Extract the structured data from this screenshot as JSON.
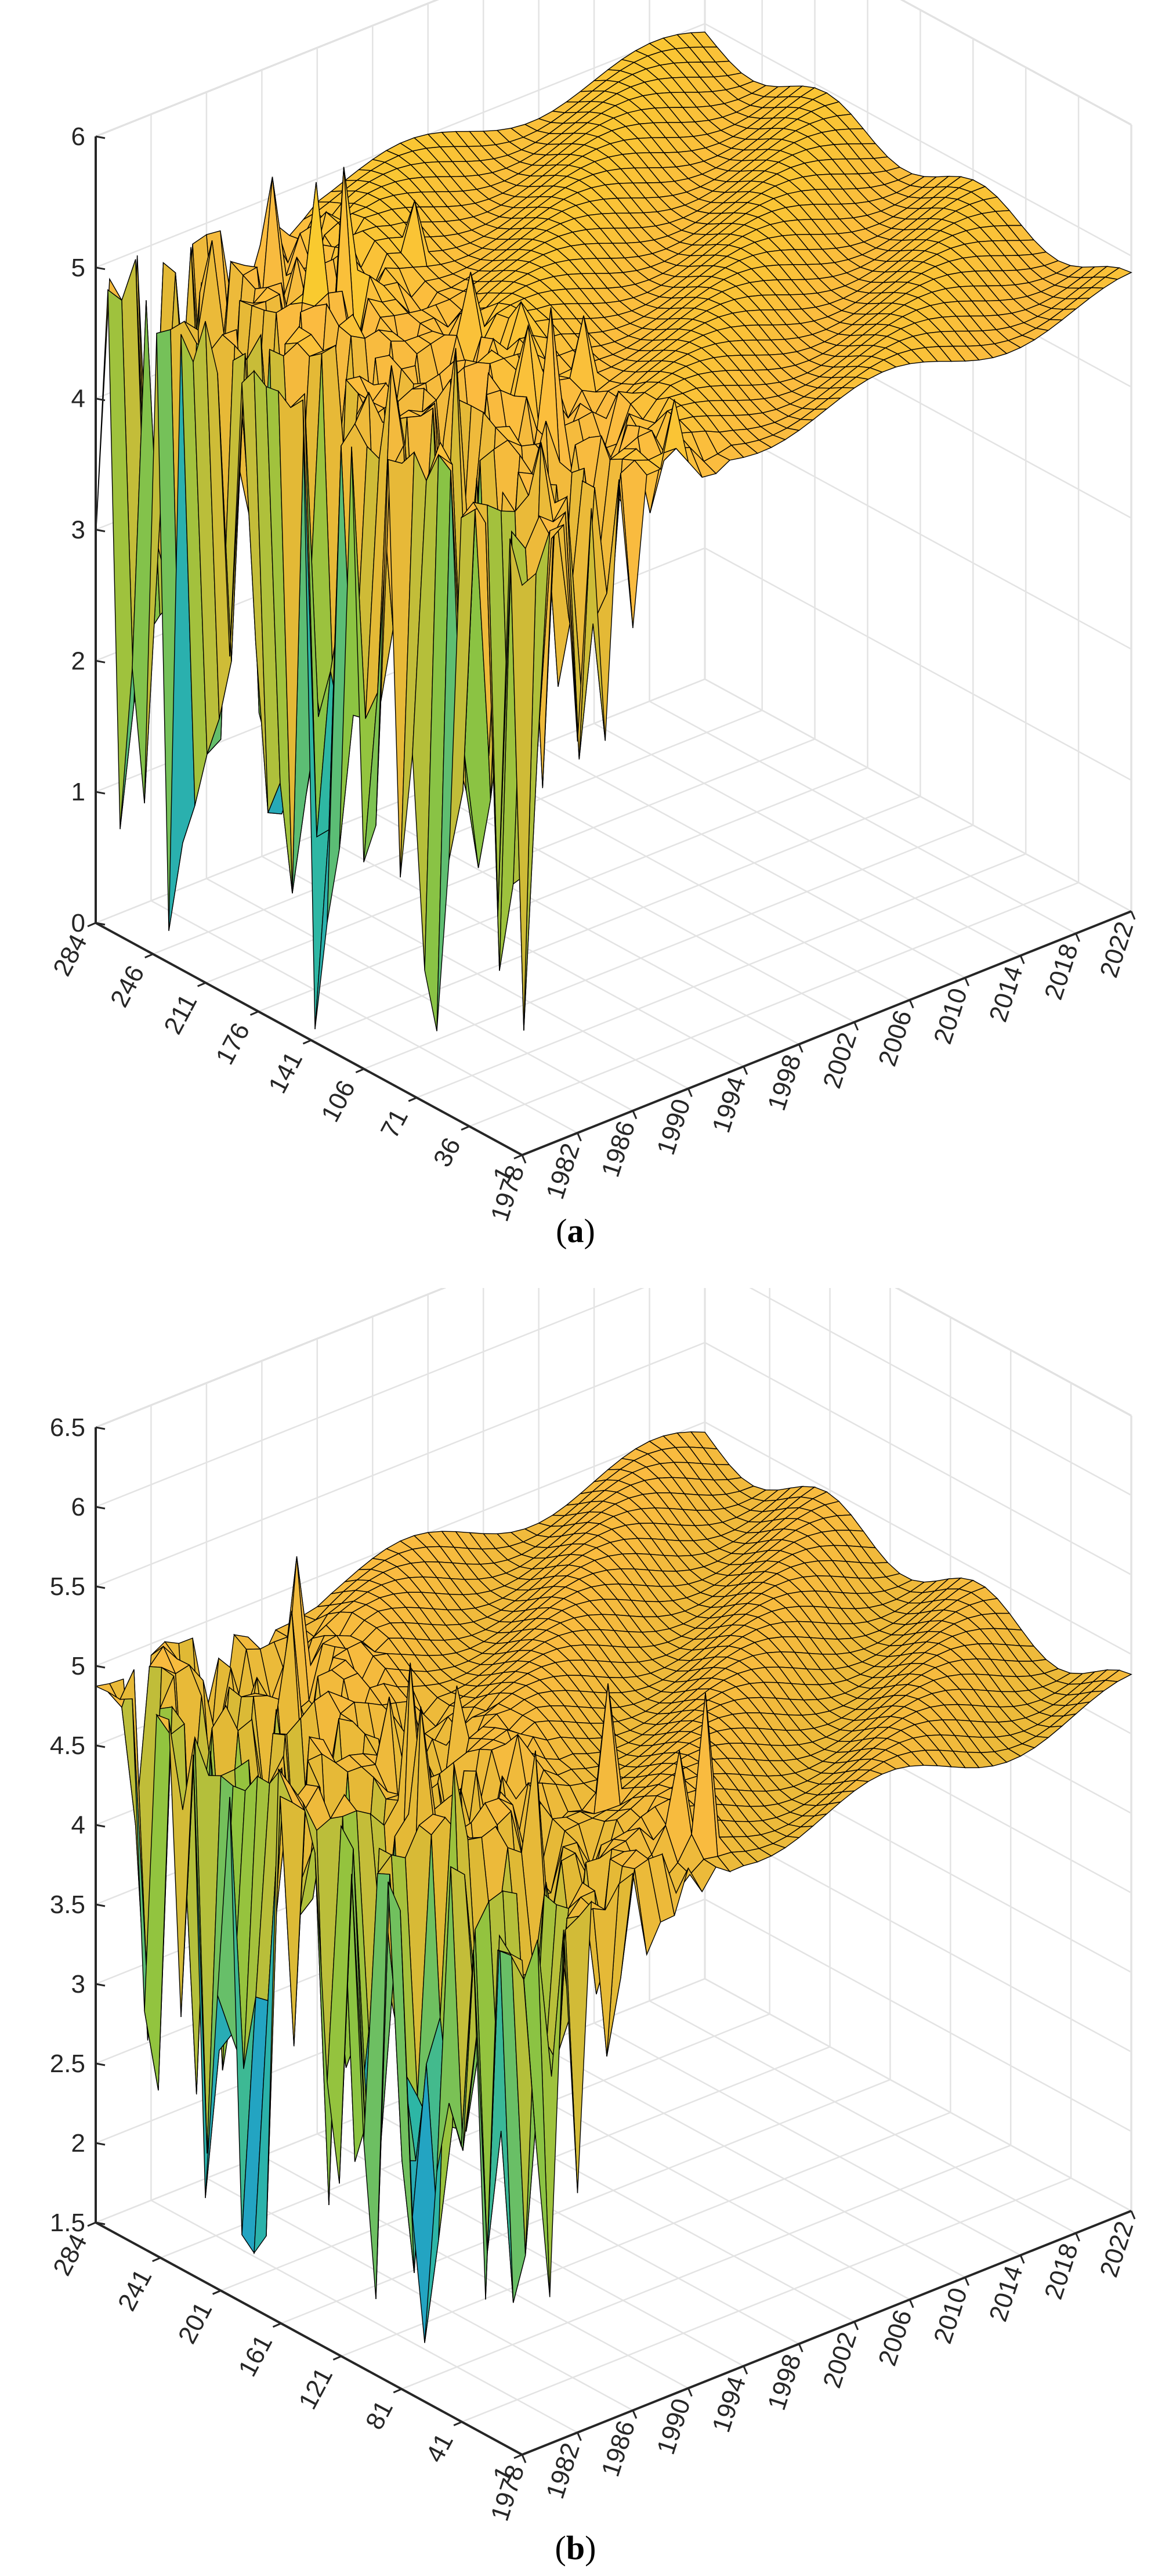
{
  "chart_data": [
    {
      "panel": "a",
      "type": "surface3d",
      "title": "",
      "xlabel": "",
      "ylabel": "",
      "zlabel": "",
      "x_label": "(",
      "caption_letter": "a",
      "caption_close": ")",
      "x_ticks": [
        "1978",
        "1982",
        "1986",
        "1990",
        "1994",
        "1998",
        "2002",
        "2006",
        "2010",
        "2014",
        "2018",
        "2022"
      ],
      "y_ticks": [
        "1",
        "36",
        "71",
        "106",
        "141",
        "176",
        "211",
        "246",
        "284"
      ],
      "z_ticks": [
        "0",
        "1",
        "2",
        "3",
        "4",
        "5",
        "6"
      ],
      "xlim": [
        1978,
        2022
      ],
      "ylim": [
        1,
        284
      ],
      "zlim": [
        0,
        6
      ],
      "colormap": "parula",
      "surface": {
        "description_values_only": true,
        "plateau_level": 4.9,
        "min_value": 0.1,
        "max_value": 5.8,
        "noisy_region_years": [
          1978,
          1995
        ],
        "stable_region_years": [
          1995,
          2022
        ]
      }
    },
    {
      "panel": "b",
      "type": "surface3d",
      "title": "",
      "xlabel": "",
      "ylabel": "",
      "zlabel": "",
      "caption_open": "(",
      "caption_letter": "b",
      "caption_close": ")",
      "x_ticks": [
        "1978",
        "1982",
        "1986",
        "1990",
        "1994",
        "1998",
        "2002",
        "2006",
        "2010",
        "2014",
        "2018",
        "2022"
      ],
      "y_ticks": [
        "1",
        "41",
        "81",
        "121",
        "161",
        "201",
        "241",
        "284"
      ],
      "z_ticks": [
        "1.5",
        "2",
        "2.5",
        "3",
        "3.5",
        "4",
        "4.5",
        "5",
        "5.5",
        "6",
        "6.5"
      ],
      "xlim": [
        1978,
        2022
      ],
      "ylim": [
        1,
        284
      ],
      "zlim": [
        1.5,
        6.5
      ],
      "colormap": "parula",
      "surface": {
        "plateau_level": 4.9,
        "min_value": 1.7,
        "max_value": 5.9,
        "noisy_region_years": [
          1978,
          1995
        ],
        "stable_region_years": [
          1995,
          2022
        ]
      }
    }
  ],
  "captions": {
    "a": {
      "open": "(",
      "letter": "a",
      "close": ")"
    },
    "b": {
      "open": "(",
      "letter": "b",
      "close": ")"
    }
  },
  "colors": {
    "parula": [
      "#352a87",
      "#1068d9",
      "#1f9dcd",
      "#2eb7a3",
      "#8fc43f",
      "#e1b935",
      "#fbbb40",
      "#f8d423",
      "#f9fb0e"
    ]
  }
}
